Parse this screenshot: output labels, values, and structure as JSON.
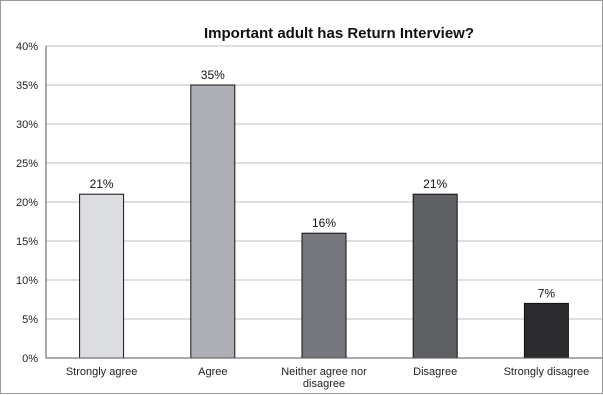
{
  "chart_data": {
    "type": "bar",
    "title": "Important adult has Return Interview?",
    "xlabel": "",
    "ylabel": "",
    "categories": [
      [
        "Strongly agree"
      ],
      [
        "Agree"
      ],
      [
        "Neither agree nor",
        "disagree"
      ],
      [
        "Disagree"
      ],
      [
        "Strongly disagree"
      ]
    ],
    "values": [
      21,
      35,
      16,
      21,
      7
    ],
    "value_labels": [
      "21%",
      "35%",
      "16%",
      "21%",
      "7%"
    ],
    "bar_colors": [
      "#dcdde0",
      "#aeafb4",
      "#76777c",
      "#5f6064",
      "#2c2b2d"
    ],
    "ylim": [
      0,
      40
    ],
    "yticks": [
      0,
      5,
      10,
      15,
      20,
      25,
      30,
      35,
      40
    ],
    "ytick_labels": [
      "0%",
      "5%",
      "10%",
      "15%",
      "20%",
      "25%",
      "30%",
      "35%",
      "40%"
    ],
    "grid": true,
    "legend": "none"
  }
}
